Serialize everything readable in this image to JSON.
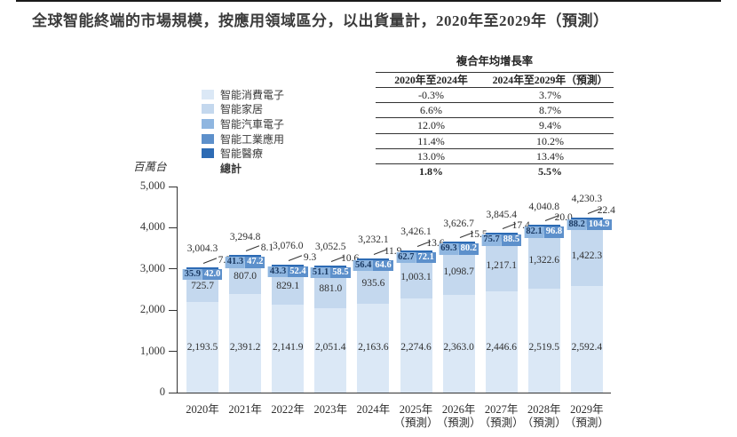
{
  "title": "全球智能終端的市場規模，按應用領域區分，以出貨量計，2020年至2029年（預測）",
  "y_axis_unit": "百萬台",
  "legend": {
    "total_label": "總計"
  },
  "cagr_table": {
    "title": "複合年均增長率",
    "columns": [
      "2020年至2024年",
      "2024年至2029年（預測）"
    ],
    "rows": [
      [
        "-0.3%",
        "3.7%"
      ],
      [
        "6.6%",
        "8.7%"
      ],
      [
        "12.0%",
        "9.4%"
      ],
      [
        "11.4%",
        "10.2%"
      ],
      [
        "13.0%",
        "13.4%"
      ]
    ],
    "total_row": [
      "1.8%",
      "5.5%"
    ]
  },
  "chart_data": {
    "type": "bar",
    "stacked": true,
    "title": "全球智能終端的市場規模，按應用領域區分，以出貨量計，2020年至2029年（預測）",
    "ylabel": "百萬台",
    "xlabel": "",
    "ylim": [
      0,
      5000
    ],
    "ytick_step": 1000,
    "grid": false,
    "legend_position": "top-left",
    "categories": [
      "2020年",
      "2021年",
      "2022年",
      "2023年",
      "2024年",
      "2025年",
      "2026年",
      "2027年",
      "2028年",
      "2029年"
    ],
    "forecast_note": "（預測）",
    "forecast_from_index": 5,
    "series": [
      {
        "name": "智能消費電子",
        "color": "#dbe8f6",
        "values": [
          2193.5,
          2391.2,
          2141.9,
          2051.4,
          2163.6,
          2274.6,
          2363.0,
          2446.6,
          2519.5,
          2592.4
        ]
      },
      {
        "name": "智能家居",
        "color": "#c4d8ee",
        "values": [
          725.7,
          807.0,
          829.1,
          881.0,
          935.6,
          1003.1,
          1098.7,
          1217.1,
          1322.6,
          1422.3
        ]
      },
      {
        "name": "智能汽車電子",
        "color": "#8fb6e0",
        "values": [
          35.9,
          41.3,
          43.3,
          51.1,
          56.4,
          62.7,
          69.3,
          75.7,
          82.1,
          88.2
        ]
      },
      {
        "name": "智能工業應用",
        "color": "#5d90cb",
        "values": [
          42.0,
          47.2,
          52.4,
          58.5,
          64.6,
          72.1,
          80.2,
          88.5,
          96.8,
          104.9
        ]
      },
      {
        "name": "智能醫療",
        "color": "#2d6bb4",
        "values": [
          7.3,
          8.1,
          9.3,
          10.6,
          11.9,
          13.6,
          15.5,
          17.4,
          20.0,
          22.4
        ]
      }
    ],
    "totals": [
      3004.3,
      3294.8,
      3076.0,
      3052.5,
      3232.1,
      3426.1,
      3626.7,
      3845.4,
      4040.8,
      4230.3
    ],
    "label_text_colors": {
      "auto_chip": "#1b3a63",
      "industrial_chip": "#ffffff"
    }
  }
}
